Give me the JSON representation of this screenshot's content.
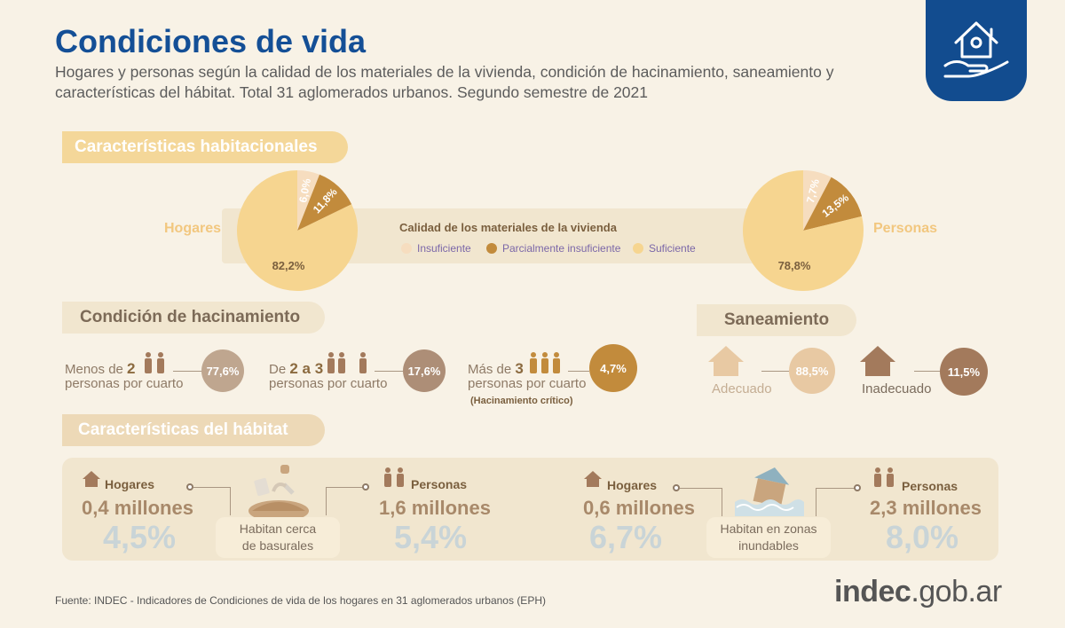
{
  "header": {
    "title": "Condiciones de vida",
    "subtitle": "Hogares y personas según la calidad de los materiales de la vivienda, condición de hacinamiento, saneamiento y características del hábitat. Total 31 aglomerados urbanos. Segundo semestre de 2021"
  },
  "sections": {
    "habitacionales": "Características habitacionales",
    "hacinamiento": "Condición de hacinamiento",
    "saneamiento": "Saneamiento",
    "habitat": "Características del hábitat"
  },
  "chart_data": [
    {
      "type": "pie",
      "title": "Hogares",
      "categories": [
        "Insuficiente",
        "Parcialmente insuficiente",
        "Suficiente"
      ],
      "values": [
        6.0,
        11.8,
        82.2
      ],
      "labels": [
        "6,0%",
        "11,8%",
        "82,2%"
      ],
      "colors": [
        "#f6ddbf",
        "#c28b3c",
        "#f6d590"
      ]
    },
    {
      "type": "pie",
      "title": "Personas",
      "categories": [
        "Insuficiente",
        "Parcialmente insuficiente",
        "Suficiente"
      ],
      "values": [
        7.7,
        13.5,
        78.8
      ],
      "labels": [
        "7,7%",
        "13,5%",
        "78,8%"
      ],
      "colors": [
        "#f6ddbf",
        "#c28b3c",
        "#f6d590"
      ]
    }
  ],
  "legend": {
    "title": "Calidad de los materiales de la vivienda",
    "items": [
      "Insuficiente",
      "Parcialmente insuficiente",
      "Suficiente"
    ]
  },
  "hacinamiento": [
    {
      "pre": "Menos de ",
      "num": "2",
      "post": "personas por cuarto",
      "value": "77,6%",
      "color": "#bfa68f"
    },
    {
      "pre": "De ",
      "num": "2 a 3",
      "post": "personas por cuarto",
      "value": "17,6%",
      "color": "#ad8e77"
    },
    {
      "pre": "Más de ",
      "num": "3",
      "post": "personas por cuarto",
      "value": "4,7%",
      "color": "#c28b3c",
      "note": "(Hacinamiento crítico)"
    }
  ],
  "saneamiento": [
    {
      "label": "Adecuado",
      "value": "88,5%",
      "color": "#e8c9a3"
    },
    {
      "label": "Inadecuado",
      "value": "11,5%",
      "color": "#a37a5c"
    }
  ],
  "habitat": {
    "basurales": {
      "hogares_label": "Hogares",
      "hogares_value": "0,4 millones",
      "hogares_pct": "4,5%",
      "personas_label": "Personas",
      "personas_value": "1,6 millones",
      "personas_pct": "5,4%",
      "caption_1": "Habitan cerca",
      "caption_2": "de basurales"
    },
    "inundables": {
      "hogares_label": "Hogares",
      "hogares_value": "0,6 millones",
      "hogares_pct": "6,7%",
      "personas_label": "Personas",
      "personas_value": "2,3 millones",
      "personas_pct": "8,0%",
      "caption_1": "Habitan en zonas",
      "caption_2": "inundables"
    }
  },
  "footer": {
    "source": "Fuente: INDEC - Indicadores de Condiciones de vida de los hogares en 31 aglomerados urbanos (EPH)",
    "brand_1": "indec",
    "brand_2": ".gob.ar"
  }
}
